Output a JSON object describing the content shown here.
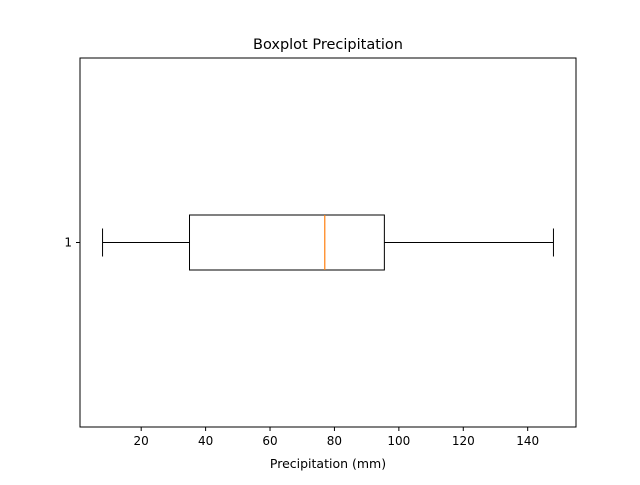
{
  "chart_data": {
    "type": "boxplot",
    "orientation": "horizontal",
    "title": "Boxplot Precipitation",
    "xlabel": "Precipitation (mm)",
    "ylabel": "",
    "xlim": [
      1.0,
      155.0
    ],
    "xticks": [
      20,
      40,
      60,
      80,
      100,
      120,
      140
    ],
    "categories": [
      "1"
    ],
    "boxes": [
      {
        "label": "1",
        "whisker_low": 8,
        "q1": 35,
        "median": 77,
        "q3": 95.5,
        "whisker_high": 148
      }
    ],
    "grid": false,
    "colors": {
      "box": "#000000",
      "median": "#ff7f0e",
      "axes": "#000000"
    }
  }
}
